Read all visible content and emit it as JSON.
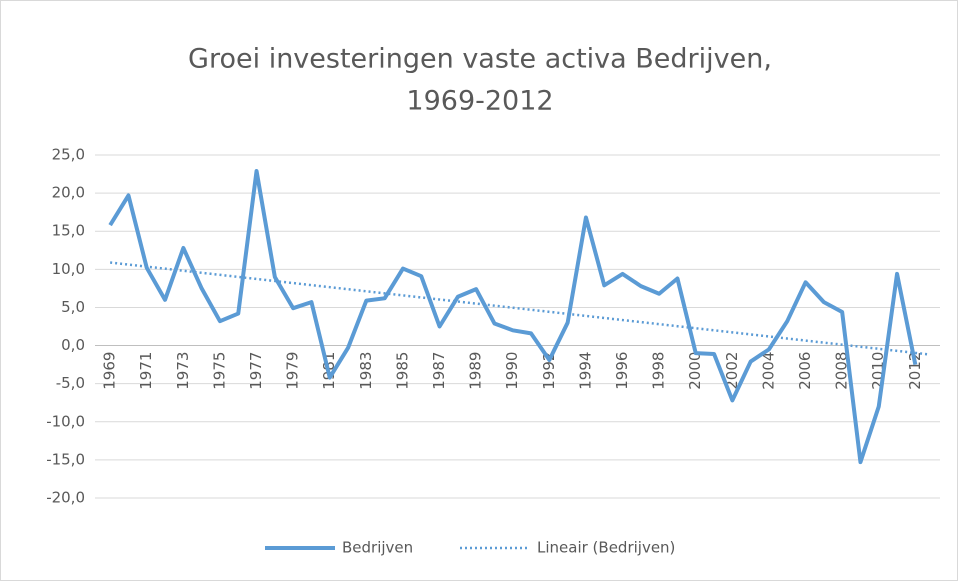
{
  "chart_data": {
    "type": "line",
    "title": [
      "Groei investeringen vaste activa Bedrijven,",
      "1969-2012"
    ],
    "categories": [
      "1969",
      null,
      "1971",
      null,
      "1973",
      null,
      "1975",
      null,
      "1977",
      null,
      "1979",
      null,
      "1981",
      null,
      "1983",
      null,
      "1985",
      null,
      "1987",
      null,
      "1989",
      null,
      "1990",
      null,
      "1992",
      null,
      "1994",
      null,
      "1996",
      null,
      "1998",
      null,
      "2000",
      null,
      "2002",
      null,
      "2004",
      null,
      "2006",
      null,
      "2008",
      null,
      "2010",
      null,
      "2012"
    ],
    "series": [
      {
        "name": "Bedrijven",
        "color": "#5b9bd5",
        "values": [
          15.8,
          19.7,
          10.2,
          6.0,
          12.8,
          7.5,
          3.2,
          4.2,
          22.9,
          9.0,
          4.9,
          5.7,
          -4.2,
          -0.3,
          5.9,
          6.2,
          10.1,
          9.1,
          2.5,
          6.4,
          7.4,
          2.9,
          2.0,
          1.6,
          -1.9,
          3.0,
          16.8,
          7.9,
          9.4,
          7.8,
          6.8,
          8.8,
          -1.0,
          -1.1,
          -7.2,
          -2.1,
          -0.5,
          3.2,
          8.3,
          5.7,
          4.4,
          -15.3,
          -8.0,
          9.4,
          -2.5
        ]
      }
    ],
    "trendline": {
      "name": "Lineair (Bedrijven)",
      "type": "linear",
      "color": "#5b9bd5"
    },
    "ylim": [
      -20,
      25
    ],
    "yticks": [
      {
        "value": -20,
        "label": "-20,0"
      },
      {
        "value": -15,
        "label": "-15,0"
      },
      {
        "value": -10,
        "label": "-10,0"
      },
      {
        "value": -5,
        "label": "-5,0"
      },
      {
        "value": 0,
        "label": "0,0"
      },
      {
        "value": 5,
        "label": "5,0"
      },
      {
        "value": 10,
        "label": "10,0"
      },
      {
        "value": 15,
        "label": "15,0"
      },
      {
        "value": 20,
        "label": "20,0"
      },
      {
        "value": 25,
        "label": "25,0"
      }
    ],
    "grid": true,
    "legend": "bottom"
  }
}
